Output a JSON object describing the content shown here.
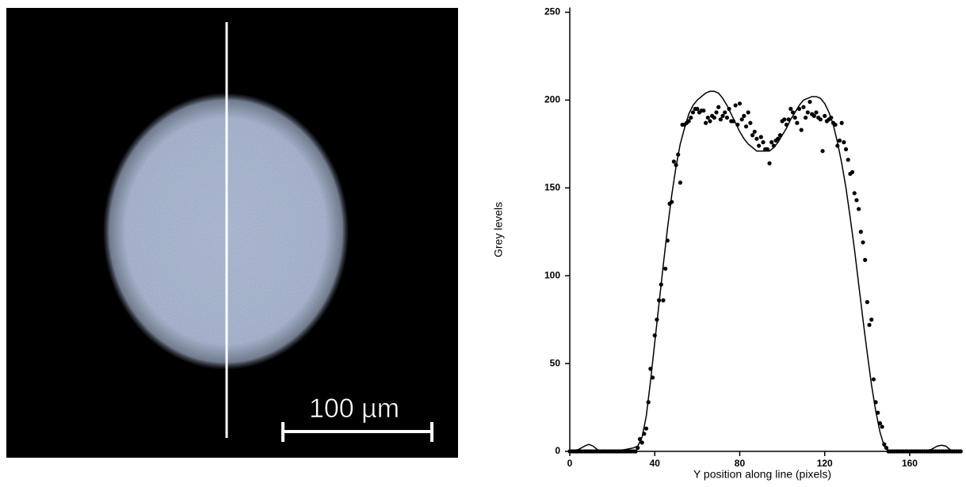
{
  "image": {
    "scale_bar_label": "100 µm"
  },
  "chart_data": {
    "type": "scatter",
    "xlabel": "Y position along line (pixels)",
    "ylabel": "Grey levels",
    "xlim": [
      0,
      185
    ],
    "ylim": [
      0,
      250
    ],
    "xticks": [
      0,
      40,
      80,
      120,
      160
    ],
    "yticks": [
      0,
      50,
      100,
      150,
      200,
      250
    ],
    "series": [
      {
        "mode": "markers",
        "color": "#000000",
        "x": [
          0,
          1,
          2,
          3,
          4,
          5,
          6,
          7,
          8,
          9,
          10,
          11,
          12,
          13,
          14,
          15,
          16,
          17,
          18,
          19,
          20,
          21,
          22,
          23,
          24,
          25,
          26,
          27,
          28,
          29,
          30,
          31,
          32,
          33,
          34,
          35,
          36,
          37,
          38,
          39,
          40,
          41,
          42,
          43,
          44,
          45,
          46,
          47,
          48,
          49,
          50,
          51,
          52,
          53,
          54,
          55,
          56,
          57,
          58,
          59,
          60,
          61,
          62,
          63,
          64,
          65,
          66,
          67,
          68,
          69,
          70,
          71,
          72,
          73,
          74,
          75,
          76,
          77,
          78,
          79,
          80,
          81,
          82,
          83,
          84,
          85,
          86,
          87,
          88,
          89,
          90,
          91,
          92,
          93,
          94,
          95,
          96,
          97,
          98,
          99,
          100,
          101,
          102,
          103,
          104,
          105,
          106,
          107,
          108,
          109,
          110,
          111,
          112,
          113,
          114,
          115,
          116,
          117,
          118,
          119,
          120,
          121,
          122,
          123,
          124,
          125,
          126,
          127,
          128,
          129,
          130,
          131,
          132,
          133,
          134,
          135,
          136,
          137,
          138,
          139,
          140,
          141,
          142,
          143,
          144,
          145,
          146,
          147,
          148,
          149,
          150,
          151,
          152,
          153,
          154,
          155,
          156,
          157,
          158,
          159,
          160,
          161,
          162,
          163,
          164,
          165,
          166,
          167,
          168,
          169,
          170,
          171,
          172,
          173,
          174,
          175,
          176,
          177,
          178,
          179,
          180,
          181,
          182,
          183,
          184
        ],
        "values": [
          0,
          0,
          0,
          0,
          0,
          0,
          0,
          0,
          0,
          0,
          0,
          0,
          0,
          0,
          0,
          0,
          0,
          0,
          0,
          0,
          0,
          0,
          0,
          0,
          0,
          0,
          0,
          0,
          0,
          0,
          0,
          0,
          2,
          7,
          5,
          10,
          13,
          28,
          47,
          42,
          66,
          75,
          86,
          95,
          86,
          104,
          120,
          141,
          142,
          165,
          163,
          169,
          153,
          186,
          186,
          187,
          188,
          190,
          193,
          195,
          195,
          193,
          194,
          194,
          187,
          190,
          188,
          191,
          190,
          193,
          196,
          189,
          191,
          193,
          190,
          195,
          188,
          188,
          197,
          186,
          198,
          189,
          191,
          185,
          193,
          187,
          180,
          182,
          178,
          174,
          179,
          176,
          172,
          172,
          164,
          176,
          174,
          177,
          178,
          180,
          188,
          189,
          186,
          189,
          195,
          193,
          190,
          187,
          195,
          183,
          196,
          190,
          193,
          199,
          192,
          191,
          193,
          190,
          189,
          171,
          191,
          188,
          189,
          190,
          187,
          186,
          174,
          177,
          187,
          176,
          172,
          166,
          158,
          159,
          147,
          143,
          138,
          125,
          119,
          109,
          85,
          72,
          75,
          41,
          28,
          22,
          16,
          14,
          4,
          2,
          0,
          0,
          0,
          0,
          0,
          0,
          0,
          0,
          0,
          0,
          0,
          0,
          0,
          0,
          0,
          0,
          0,
          0,
          0,
          0,
          0,
          0,
          0,
          0,
          0,
          0,
          0,
          0,
          0,
          0,
          0,
          0,
          0,
          0,
          0
        ]
      },
      {
        "mode": "line",
        "color": "#000000",
        "x": [
          0,
          4,
          7,
          9,
          11,
          14,
          20,
          26,
          30,
          32,
          34,
          36,
          38,
          40,
          42,
          44,
          46,
          48,
          50,
          52,
          54,
          56,
          58,
          60,
          62,
          64,
          66,
          68,
          70,
          72,
          74,
          76,
          78,
          80,
          82,
          84,
          86,
          88,
          90,
          92,
          94,
          96,
          98,
          100,
          102,
          104,
          106,
          108,
          110,
          112,
          114,
          116,
          118,
          120,
          122,
          124,
          126,
          128,
          130,
          132,
          134,
          136,
          138,
          140,
          142,
          144,
          146,
          148,
          150,
          155,
          165,
          170,
          173,
          175,
          177,
          180,
          183
        ],
        "values": [
          0,
          1,
          3,
          4,
          3,
          0,
          0,
          1,
          2,
          3,
          8,
          20,
          40,
          62,
          84,
          106,
          127,
          146,
          162,
          175,
          184,
          192,
          197,
          200,
          202,
          204,
          205,
          205,
          204,
          201,
          197,
          192,
          187,
          182,
          178,
          175,
          173,
          171,
          171,
          171,
          171,
          173,
          176,
          180,
          184,
          189,
          193,
          197,
          200,
          201,
          202,
          202,
          201,
          198,
          193,
          186,
          176,
          164,
          150,
          133,
          115,
          95,
          75,
          56,
          38,
          23,
          11,
          3,
          0,
          0,
          0,
          1,
          3,
          3.5,
          3,
          0,
          0
        ]
      }
    ]
  }
}
